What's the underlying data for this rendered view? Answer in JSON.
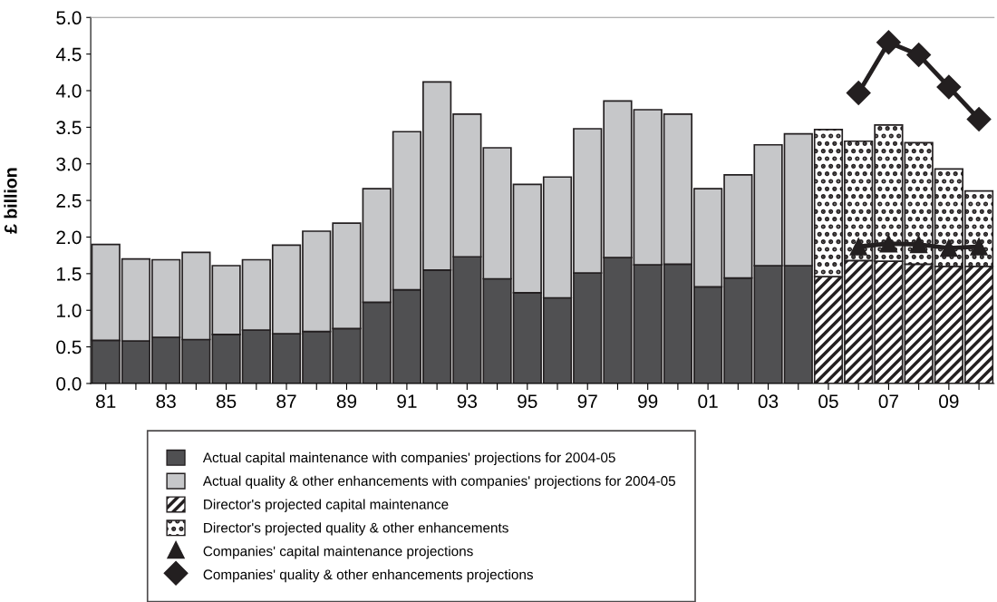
{
  "chart_data": {
    "type": "bar",
    "stacked": true,
    "ylabel": "£ billion",
    "categories": [
      "81",
      null,
      "83",
      null,
      "85",
      null,
      "87",
      null,
      "89",
      null,
      "91",
      null,
      "93",
      null,
      "95",
      null,
      "97",
      null,
      "99",
      null,
      "01",
      null,
      "03",
      null,
      "05",
      null,
      "07",
      null,
      "09",
      null
    ],
    "series": [
      {
        "name": "Actual capital maintenance with companies' projections for 2004-05",
        "color": "#505052",
        "values": [
          0.59,
          0.58,
          0.63,
          0.6,
          0.67,
          0.73,
          0.68,
          0.71,
          0.75,
          1.11,
          1.28,
          1.55,
          1.73,
          1.43,
          1.24,
          1.17,
          1.51,
          1.72,
          1.62,
          1.63,
          1.32,
          1.44,
          1.61,
          1.61,
          null,
          null,
          null,
          null,
          null,
          null
        ]
      },
      {
        "name": "Actual quality & other enhancements with companies' projections for 2004-05",
        "color": "#c6c7c9",
        "values": [
          1.31,
          1.12,
          1.06,
          1.19,
          0.94,
          0.96,
          1.21,
          1.37,
          1.44,
          1.55,
          2.16,
          2.57,
          1.95,
          1.79,
          1.48,
          1.65,
          1.97,
          2.14,
          2.12,
          2.05,
          1.34,
          1.41,
          1.65,
          1.8,
          null,
          null,
          null,
          null,
          null,
          null
        ]
      },
      {
        "name": "Director's projected capital maintenance",
        "color": "#231f20",
        "values": [
          null,
          null,
          null,
          null,
          null,
          null,
          null,
          null,
          null,
          null,
          null,
          null,
          null,
          null,
          null,
          null,
          null,
          null,
          null,
          null,
          null,
          null,
          null,
          null,
          1.46,
          1.68,
          1.67,
          1.63,
          1.6,
          1.6
        ]
      },
      {
        "name": "Director's projected quality & other enhancements",
        "color": "#231f20",
        "values": [
          null,
          null,
          null,
          null,
          null,
          null,
          null,
          null,
          null,
          null,
          null,
          null,
          null,
          null,
          null,
          null,
          null,
          null,
          null,
          null,
          null,
          null,
          null,
          null,
          2.01,
          1.63,
          1.86,
          1.66,
          1.33,
          1.03
        ]
      },
      {
        "name": "Companies' capital maintenance projections",
        "type": "line",
        "marker": "triangle",
        "color": "#231f20",
        "values": [
          null,
          null,
          null,
          null,
          null,
          null,
          null,
          null,
          null,
          null,
          null,
          null,
          null,
          null,
          null,
          null,
          null,
          null,
          null,
          null,
          null,
          null,
          null,
          null,
          null,
          1.87,
          1.91,
          1.9,
          1.85,
          1.87
        ]
      },
      {
        "name": "Companies' quality & other enhancements projections",
        "type": "line",
        "marker": "diamond",
        "color": "#231f20",
        "values": [
          null,
          null,
          null,
          null,
          null,
          null,
          null,
          null,
          null,
          null,
          null,
          null,
          null,
          null,
          null,
          null,
          null,
          null,
          null,
          null,
          null,
          null,
          null,
          null,
          null,
          3.97,
          4.66,
          4.49,
          4.05,
          3.61
        ]
      }
    ],
    "ylim": [
      0,
      5
    ],
    "yticks": [
      {
        "value": 0,
        "label": "0.0"
      },
      {
        "value": 0.5,
        "label": "0.5"
      },
      {
        "value": 1,
        "label": "1.0"
      },
      {
        "value": 1.5,
        "label": "1.5"
      },
      {
        "value": 2,
        "label": "2.0"
      },
      {
        "value": 2.5,
        "label": "2.5"
      },
      {
        "value": 3,
        "label": "3.0"
      },
      {
        "value": 3.5,
        "label": "3.5"
      },
      {
        "value": 4,
        "label": "4.0"
      },
      {
        "value": 4.5,
        "label": "4.5"
      },
      {
        "value": 5,
        "label": "5.0"
      }
    ],
    "legend": "bottom",
    "grid": false
  }
}
